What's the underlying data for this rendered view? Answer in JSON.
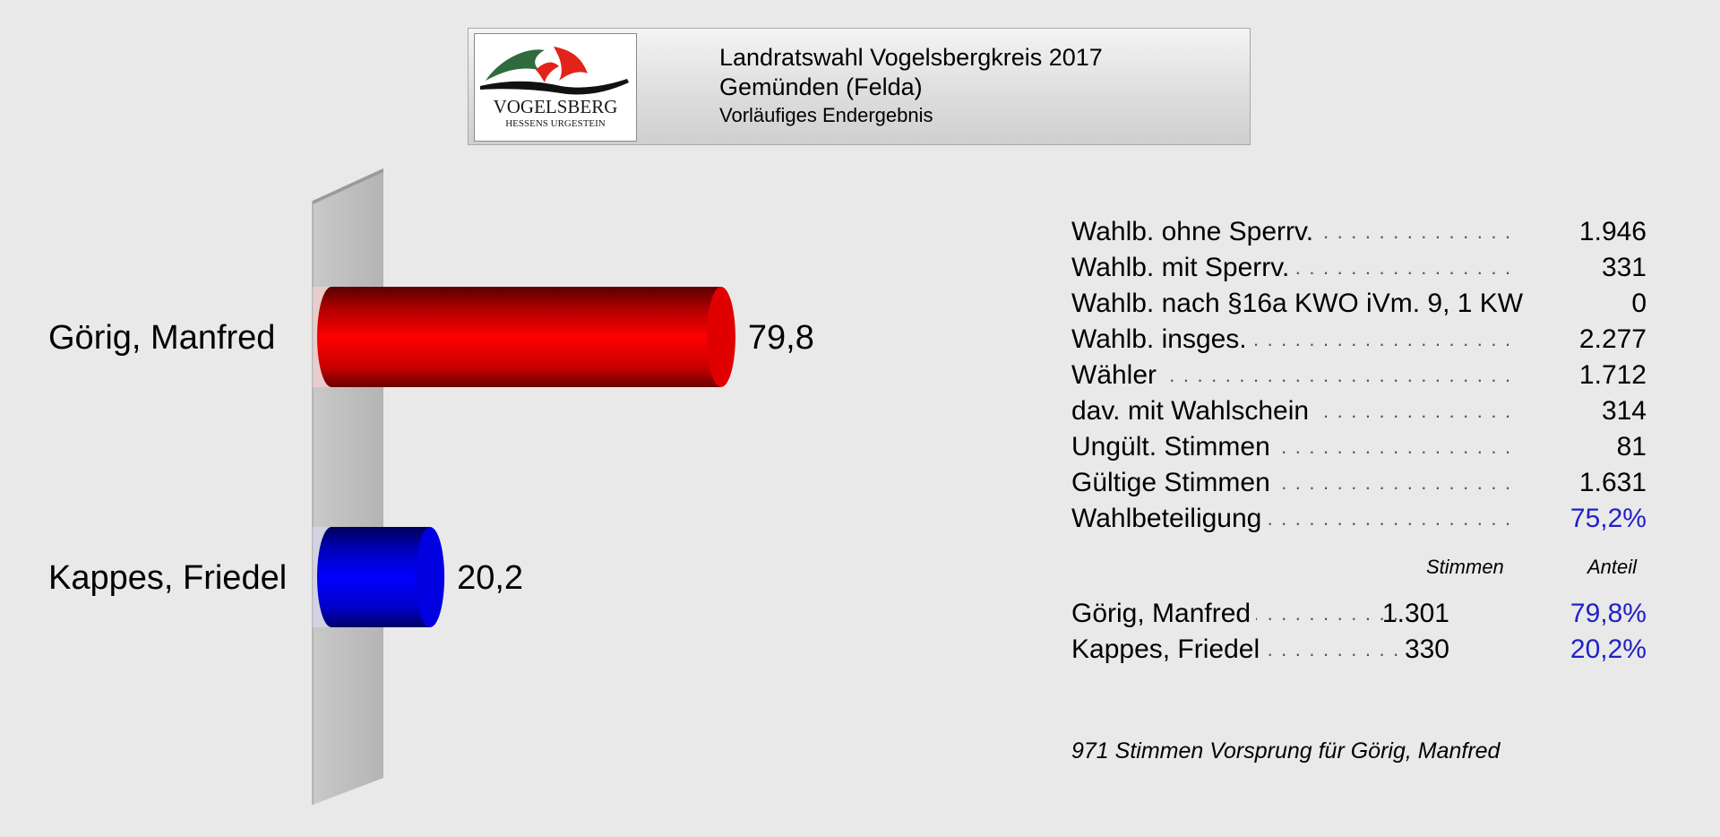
{
  "header": {
    "line1": "Landratswahl Vogelsbergkreis 2017",
    "line2": "Gemünden (Felda)",
    "line3": "Vorläufiges Endergebnis"
  },
  "logo": {
    "name": "VOGELSBERG",
    "tagline": "HESSENS URGESTEIN",
    "colors": {
      "green": "#2f6b3f",
      "red": "#e2231a",
      "black": "#111111"
    }
  },
  "chart_data": {
    "type": "bar",
    "orientation": "horizontal",
    "categories": [
      "Görig, Manfred",
      "Kappes, Friedel"
    ],
    "values": [
      79.8,
      20.2
    ],
    "value_labels": [
      "79,8",
      "20,2"
    ],
    "colors": [
      "#ff0000",
      "#0000ee"
    ],
    "xlim": [
      0,
      100
    ],
    "title": "",
    "xlabel": "",
    "ylabel": "",
    "grid": false,
    "style": "3d-cylinder"
  },
  "stats": [
    {
      "label": "Wahlb. ohne Sperrv.",
      "value": "1.946",
      "dots": true
    },
    {
      "label": "Wahlb. mit Sperrv.",
      "value": "331",
      "dots": true
    },
    {
      "label": "Wahlb. nach §16a KWO iVm. 9, 1 KW",
      "value": "0",
      "dots": false
    },
    {
      "label": "Wahlb. insges.",
      "value": "2.277",
      "dots": true
    },
    {
      "label": "Wähler",
      "value": "1.712",
      "dots": true
    },
    {
      "label": "dav. mit Wahlschein",
      "value": "314",
      "dots": true
    },
    {
      "label": "Ungült. Stimmen",
      "value": "81",
      "dots": true
    },
    {
      "label": "Gültige Stimmen",
      "value": "1.631",
      "dots": true
    },
    {
      "label": "Wahlbeteiligung",
      "value": "75,2%",
      "dots": true,
      "highlight": true
    }
  ],
  "results_header": {
    "votes": "Stimmen",
    "share": "Anteil"
  },
  "results": [
    {
      "name": "Görig, Manfred",
      "votes": "1.301",
      "share": "79,8%"
    },
    {
      "name": "Kappes, Friedel",
      "votes": "330",
      "share": "20,2%"
    }
  ],
  "lead_note": "971 Stimmen Vorsprung für Görig, Manfred",
  "accent_color": "#1f1fc8"
}
